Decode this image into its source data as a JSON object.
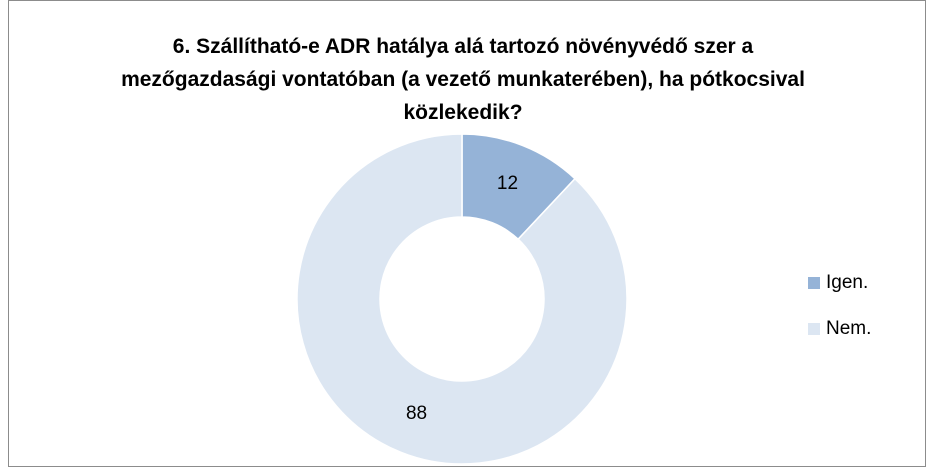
{
  "chart_data": {
    "type": "donut",
    "title": "6. Szállítható-e ADR hatálya alá tartozó növényvédő szer a mezőgazdasági vontatóban (a vezető munkaterében), ha pótkocsival közlekedik?",
    "categories": [
      "Igen.",
      "Nem."
    ],
    "values": [
      12,
      88
    ],
    "colors": [
      "#95b3d7",
      "#dce6f2"
    ],
    "legend": "right"
  }
}
